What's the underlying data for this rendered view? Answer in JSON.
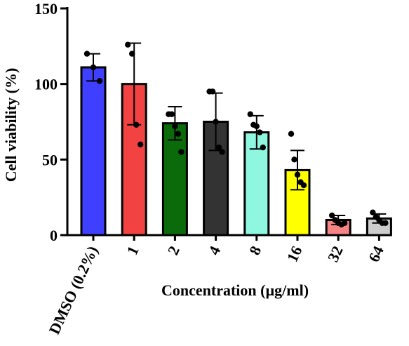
{
  "chart_data": {
    "type": "bar",
    "title": "",
    "xlabel": "Concentration (µg/ml)",
    "ylabel": "Cell viability (%)",
    "ylim": [
      0,
      150
    ],
    "yticks": [
      0,
      50,
      100,
      150
    ],
    "grid": false,
    "legend": "none",
    "categories": [
      "DMSO (0.2%)",
      "1",
      "2",
      "4",
      "8",
      "16",
      "32",
      "64"
    ],
    "values": [
      111,
      100,
      74,
      75,
      68,
      43,
      10,
      11
    ],
    "error_bars": [
      9,
      27,
      11,
      19,
      11,
      13,
      3,
      3
    ],
    "colors": [
      "#3f3fff",
      "#f24242",
      "#0b6b0b",
      "#333333",
      "#8ff7e0",
      "#ffff00",
      "#f78484",
      "#cccccc"
    ],
    "points": [
      [
        120,
        111,
        102
      ],
      [
        126,
        120,
        73,
        60
      ],
      [
        80,
        80,
        72,
        67,
        55
      ],
      [
        95,
        95,
        75,
        58,
        55
      ],
      [
        80,
        73,
        72,
        68,
        58
      ],
      [
        67,
        50,
        40,
        35,
        33
      ],
      [
        13,
        10,
        8,
        7,
        8
      ],
      [
        15,
        12,
        10,
        8,
        8
      ]
    ]
  }
}
